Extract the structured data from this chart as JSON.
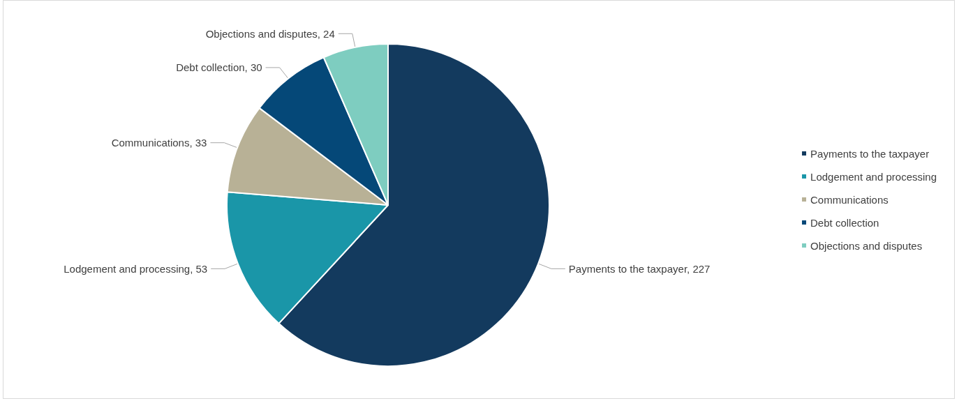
{
  "chart_data": {
    "type": "pie",
    "categories": [
      "Payments to the taxpayer",
      "Lodgement and processing",
      "Communications",
      "Debt collection",
      "Objections and disputes"
    ],
    "values": [
      227,
      53,
      33,
      30,
      24
    ],
    "value_labels": [
      "Payments to the taxpayer, 227",
      "Lodgement and processing, 53",
      "Communications, 33",
      "Debt collection, 30",
      "Objections and disputes, 24"
    ],
    "colors": [
      "#133a5e",
      "#1a96a8",
      "#b8b196",
      "#054878",
      "#7ecdc0"
    ],
    "legend": "right"
  }
}
